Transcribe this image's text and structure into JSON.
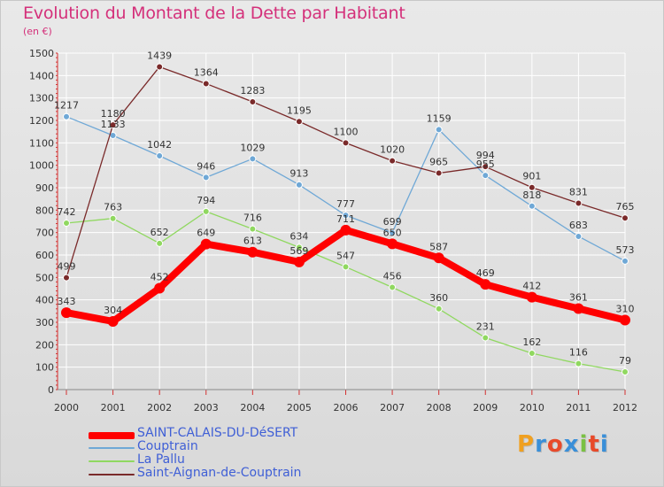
{
  "header": {
    "title": "Evolution du Montant de la Dette par Habitant",
    "subtitle": "(en €)"
  },
  "brand": {
    "text": "Proxiti",
    "colors": [
      "#f0a020",
      "#3a8fd8",
      "#e84a2a",
      "#3a8fd8",
      "#7ac143",
      "#e84a2a",
      "#3a8fd8"
    ]
  },
  "chart_data": {
    "type": "line",
    "title": "Evolution du Montant de la Dette par Habitant",
    "subtitle": "(en €)",
    "xlabel": "",
    "ylabel": "",
    "x": [
      "2000",
      "2001",
      "2002",
      "2003",
      "2004",
      "2005",
      "2006",
      "2007",
      "2008",
      "2009",
      "2010",
      "2011",
      "2012"
    ],
    "ylim": [
      0,
      1500
    ],
    "yticks": [
      0,
      100,
      200,
      300,
      400,
      500,
      600,
      700,
      800,
      900,
      1000,
      1100,
      1200,
      1300,
      1400,
      1500
    ],
    "grid": true,
    "legend_position": "bottom-left",
    "series": [
      {
        "name": "SAINT-CALAIS-DU-DéSERT",
        "color": "#ff0000",
        "values": [
          343,
          304,
          452,
          649,
          613,
          569,
          711,
          650,
          587,
          469,
          412,
          361,
          310
        ]
      },
      {
        "name": "Couptrain",
        "color": "#6fa8d6",
        "values": [
          1217,
          1133,
          1042,
          946,
          1029,
          913,
          777,
          699,
          1159,
          955,
          818,
          683,
          573
        ]
      },
      {
        "name": "La Pallu",
        "color": "#90d860",
        "values": [
          742,
          763,
          652,
          794,
          716,
          634,
          547,
          456,
          360,
          231,
          162,
          116,
          79
        ]
      },
      {
        "name": "Saint-Aignan-de-Couptrain",
        "color": "#7a2a2a",
        "values": [
          499,
          1180,
          1439,
          1364,
          1283,
          1195,
          1100,
          1020,
          965,
          994,
          901,
          831,
          765
        ]
      }
    ],
    "data_labels": [
      [
        "343",
        "304",
        "452",
        "649",
        "613",
        "569",
        "711",
        "650",
        "587",
        "469",
        "412",
        "361",
        "310"
      ],
      [
        "1217",
        "1133",
        "1042",
        "946",
        "1029",
        "913",
        "777",
        "699",
        "1159",
        "955",
        "818",
        "683",
        "573"
      ],
      [
        "742",
        "763",
        "652",
        "794",
        "716",
        "634",
        "547",
        "456",
        "360",
        "231",
        "162",
        "116",
        "79"
      ],
      [
        "499",
        "1180",
        "1439",
        "1364",
        "1283",
        "1195",
        "1100",
        "1020",
        "965",
        "994",
        "901",
        "831",
        "765"
      ]
    ]
  }
}
